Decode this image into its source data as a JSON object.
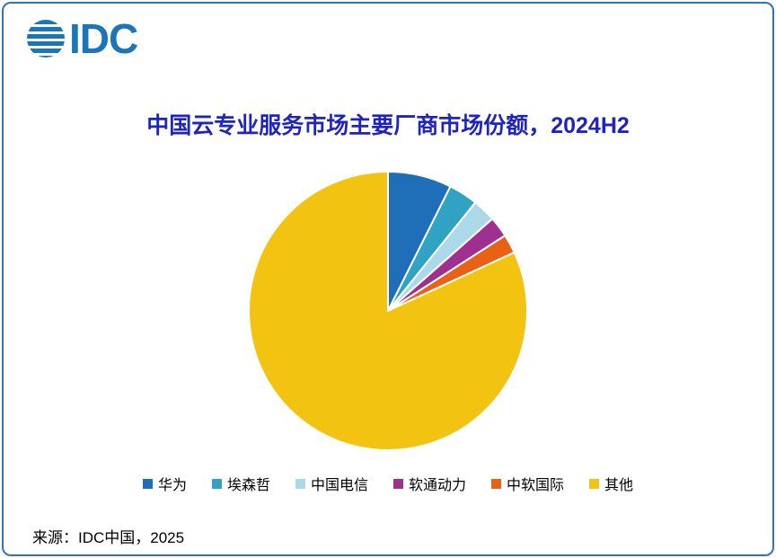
{
  "logo": {
    "text": "IDC"
  },
  "source": "来源：IDC中国，2025",
  "brand": {
    "logo_color": "#1b75bb",
    "title_color": "#1f24be",
    "border_color": "#2f74b5"
  },
  "chart_data": {
    "type": "pie",
    "title": "中国云专业服务市场主要厂商市场份额，2024H2",
    "labels": [
      "华为",
      "埃森哲",
      "中国电信",
      "软通动力",
      "中软国际",
      "其他"
    ],
    "values": [
      7.4,
      3.4,
      2.7,
      2.4,
      2.2,
      81.9
    ],
    "colors": [
      "#1f6eb8",
      "#2fa3c1",
      "#abd9e9",
      "#a0308f",
      "#e96114",
      "#f3c312"
    ],
    "start_angle_deg": 0,
    "direction": "clockwise",
    "legend_position": "bottom",
    "slice_border_color": "#ffffff"
  }
}
